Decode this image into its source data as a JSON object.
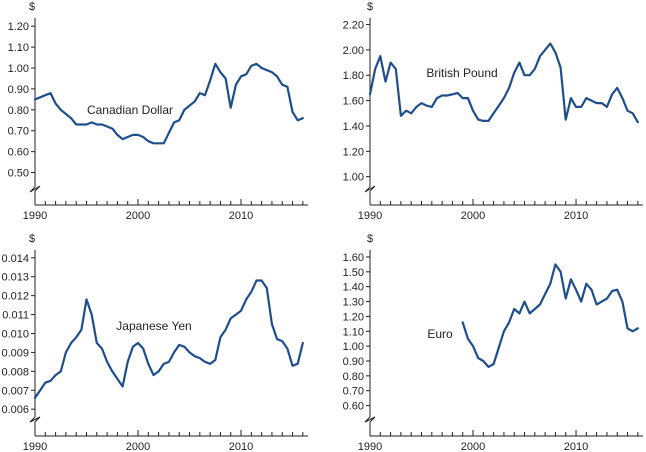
{
  "colors": {
    "line": "#1f4e8c",
    "axis": "#231f20"
  },
  "chart_data": [
    {
      "type": "line",
      "series_label": "Canadian Dollar",
      "unit": "$",
      "xlim": [
        1990,
        2016.5
      ],
      "ylim": [
        0.45,
        1.22
      ],
      "yticks": [
        "0.50",
        "0.60",
        "0.70",
        "0.80",
        "0.90",
        "1.00",
        "1.10",
        "1.20"
      ],
      "xticks": [
        "1990",
        "2000",
        "2010"
      ],
      "x": [
        1990,
        1990.5,
        1991,
        1991.5,
        1992,
        1992.5,
        1993,
        1993.5,
        1994,
        1994.5,
        1995,
        1995.5,
        1996,
        1996.5,
        1997,
        1997.5,
        1998,
        1998.5,
        1999,
        1999.5,
        2000,
        2000.5,
        2001,
        2001.5,
        2002,
        2002.5,
        2003,
        2003.5,
        2004,
        2004.5,
        2005,
        2005.5,
        2006,
        2006.5,
        2007,
        2007.5,
        2008,
        2008.5,
        2009,
        2009.5,
        2010,
        2010.5,
        2011,
        2011.5,
        2012,
        2012.5,
        2013,
        2013.5,
        2014,
        2014.5,
        2015,
        2015.5,
        2016
      ],
      "y": [
        0.85,
        0.86,
        0.87,
        0.88,
        0.83,
        0.8,
        0.78,
        0.76,
        0.73,
        0.73,
        0.73,
        0.74,
        0.73,
        0.73,
        0.72,
        0.71,
        0.68,
        0.66,
        0.67,
        0.68,
        0.68,
        0.67,
        0.65,
        0.64,
        0.64,
        0.64,
        0.69,
        0.74,
        0.75,
        0.8,
        0.82,
        0.84,
        0.88,
        0.87,
        0.94,
        1.02,
        0.98,
        0.95,
        0.81,
        0.92,
        0.96,
        0.97,
        1.01,
        1.02,
        1.0,
        0.99,
        0.98,
        0.96,
        0.92,
        0.91,
        0.79,
        0.75,
        0.76
      ]
    },
    {
      "type": "line",
      "series_label": "British Pound",
      "unit": "$",
      "xlim": [
        1990,
        2016.5
      ],
      "ylim": [
        0.95,
        2.22
      ],
      "yticks": [
        "1.00",
        "1.20",
        "1.40",
        "1.60",
        "1.80",
        "2.00",
        "2.20"
      ],
      "xticks": [
        "1990",
        "2000",
        "2010"
      ],
      "x": [
        1990,
        1990.5,
        1991,
        1991.5,
        1992,
        1992.5,
        1993,
        1993.5,
        1994,
        1994.5,
        1995,
        1995.5,
        1996,
        1996.5,
        1997,
        1997.5,
        1998,
        1998.5,
        1999,
        1999.5,
        2000,
        2000.5,
        2001,
        2001.5,
        2002,
        2002.5,
        2003,
        2003.5,
        2004,
        2004.5,
        2005,
        2005.5,
        2006,
        2006.5,
        2007,
        2007.5,
        2008,
        2008.5,
        2009,
        2009.5,
        2010,
        2010.5,
        2011,
        2011.5,
        2012,
        2012.5,
        2013,
        2013.5,
        2014,
        2014.5,
        2015,
        2015.5,
        2016
      ],
      "y": [
        1.65,
        1.85,
        1.95,
        1.75,
        1.9,
        1.85,
        1.48,
        1.52,
        1.5,
        1.55,
        1.58,
        1.56,
        1.55,
        1.62,
        1.64,
        1.64,
        1.65,
        1.66,
        1.62,
        1.62,
        1.52,
        1.45,
        1.44,
        1.44,
        1.5,
        1.56,
        1.62,
        1.7,
        1.82,
        1.9,
        1.8,
        1.8,
        1.85,
        1.95,
        2.0,
        2.05,
        1.98,
        1.86,
        1.45,
        1.62,
        1.55,
        1.55,
        1.62,
        1.6,
        1.58,
        1.58,
        1.55,
        1.65,
        1.7,
        1.62,
        1.52,
        1.5,
        1.43
      ]
    },
    {
      "type": "line",
      "series_label": "Japanese Yen",
      "unit": "$",
      "xlim": [
        1990,
        2016.5
      ],
      "ylim": [
        0.0058,
        0.0142
      ],
      "yticks": [
        "0.006",
        "0.007",
        "0.008",
        "0.009",
        "0.010",
        "0.011",
        "0.012",
        "0.013",
        "0.014"
      ],
      "xticks": [
        "1990",
        "2000",
        "2010"
      ],
      "x": [
        1990,
        1990.5,
        1991,
        1991.5,
        1992,
        1992.5,
        1993,
        1993.5,
        1994,
        1994.5,
        1995,
        1995.5,
        1996,
        1996.5,
        1997,
        1997.5,
        1998,
        1998.5,
        1999,
        1999.5,
        2000,
        2000.5,
        2001,
        2001.5,
        2002,
        2002.5,
        2003,
        2003.5,
        2004,
        2004.5,
        2005,
        2005.5,
        2006,
        2006.5,
        2007,
        2007.5,
        2008,
        2008.5,
        2009,
        2009.5,
        2010,
        2010.5,
        2011,
        2011.5,
        2012,
        2012.5,
        2013,
        2013.5,
        2014,
        2014.5,
        2015,
        2015.5,
        2016
      ],
      "y": [
        0.0066,
        0.007,
        0.0074,
        0.0075,
        0.0078,
        0.008,
        0.009,
        0.0095,
        0.0098,
        0.0102,
        0.0118,
        0.011,
        0.0095,
        0.0092,
        0.0085,
        0.008,
        0.0076,
        0.0072,
        0.0085,
        0.0093,
        0.0095,
        0.0092,
        0.0084,
        0.0078,
        0.008,
        0.0084,
        0.0085,
        0.009,
        0.0094,
        0.0093,
        0.009,
        0.0088,
        0.0087,
        0.0085,
        0.0084,
        0.0086,
        0.0098,
        0.0102,
        0.0108,
        0.011,
        0.0112,
        0.0118,
        0.0122,
        0.0128,
        0.0128,
        0.0124,
        0.0105,
        0.0097,
        0.0096,
        0.0092,
        0.0083,
        0.0084,
        0.0095
      ]
    },
    {
      "type": "line",
      "series_label": "Euro",
      "unit": "$",
      "xlim": [
        1990,
        2016.5
      ],
      "ylim": [
        0.55,
        1.62
      ],
      "yticks": [
        "0.60",
        "0.70",
        "0.80",
        "0.90",
        "1.00",
        "1.10",
        "1.20",
        "1.30",
        "1.40",
        "1.50",
        "1.60"
      ],
      "xticks": [
        "1990",
        "2000",
        "2010"
      ],
      "x": [
        1999,
        1999.5,
        2000,
        2000.5,
        2001,
        2001.5,
        2002,
        2002.5,
        2003,
        2003.5,
        2004,
        2004.5,
        2005,
        2005.5,
        2006,
        2006.5,
        2007,
        2007.5,
        2008,
        2008.5,
        2009,
        2009.5,
        2010,
        2010.5,
        2011,
        2011.5,
        2012,
        2012.5,
        2013,
        2013.5,
        2014,
        2014.5,
        2015,
        2015.5,
        2016
      ],
      "y": [
        1.16,
        1.05,
        1.0,
        0.92,
        0.9,
        0.86,
        0.88,
        0.99,
        1.1,
        1.16,
        1.25,
        1.22,
        1.3,
        1.22,
        1.25,
        1.28,
        1.35,
        1.42,
        1.55,
        1.5,
        1.32,
        1.45,
        1.38,
        1.3,
        1.42,
        1.38,
        1.28,
        1.3,
        1.32,
        1.37,
        1.38,
        1.3,
        1.12,
        1.1,
        1.12
      ]
    }
  ]
}
